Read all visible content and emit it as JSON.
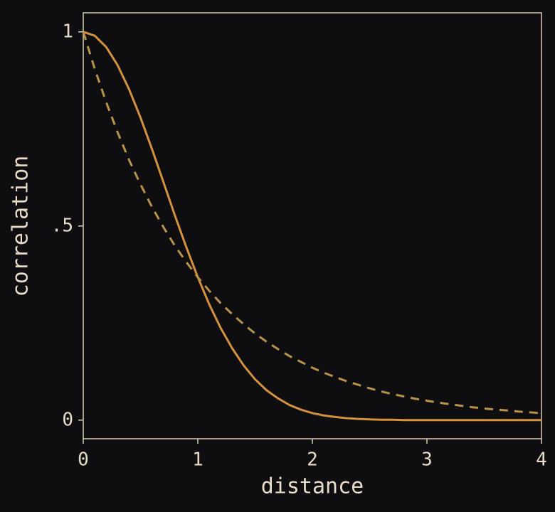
{
  "chart_data": {
    "type": "line",
    "xlabel": "distance",
    "ylabel": "correlation",
    "x": [
      0,
      0.1,
      0.2,
      0.3,
      0.4,
      0.5,
      0.6,
      0.7,
      0.8,
      0.9,
      1,
      1.1,
      1.2,
      1.3,
      1.4,
      1.5,
      1.6,
      1.7,
      1.8,
      1.9,
      2,
      2.1,
      2.2,
      2.3,
      2.4,
      2.5,
      2.6,
      2.7,
      2.8,
      2.9,
      3,
      3.1,
      3.2,
      3.3,
      3.4,
      3.5,
      3.6,
      3.7,
      3.8,
      3.9,
      4
    ],
    "series": [
      {
        "color": "#d4913f",
        "dashed": false,
        "values": [
          1,
          0.99,
          0.961,
          0.914,
          0.852,
          0.779,
          0.698,
          0.613,
          0.527,
          0.445,
          0.368,
          0.298,
          0.237,
          0.185,
          0.141,
          0.105,
          0.077,
          0.056,
          0.039,
          0.027,
          0.018,
          0.012,
          0.008,
          0.005,
          0.003,
          0.002,
          0.001,
          0.001,
          0,
          0,
          0,
          0,
          0,
          0,
          0,
          0,
          0,
          0,
          0,
          0,
          0
        ]
      },
      {
        "color": "#b8924a",
        "dashed": true,
        "values": [
          1,
          0.905,
          0.819,
          0.741,
          0.67,
          0.607,
          0.549,
          0.497,
          0.449,
          0.407,
          0.368,
          0.333,
          0.301,
          0.273,
          0.247,
          0.223,
          0.202,
          0.183,
          0.165,
          0.15,
          0.135,
          0.122,
          0.111,
          0.1,
          0.091,
          0.082,
          0.074,
          0.067,
          0.061,
          0.055,
          0.05,
          0.045,
          0.041,
          0.037,
          0.033,
          0.03,
          0.027,
          0.025,
          0.022,
          0.02,
          0.018
        ]
      }
    ],
    "xlim": [
      0,
      4
    ],
    "xticks": [
      0,
      1,
      2,
      3,
      4
    ],
    "ylim": [
      -0.048,
      1.049
    ],
    "yticks": [
      0,
      {
        "value": 0.5,
        "label": ".5"
      },
      1
    ],
    "grid": false
  }
}
